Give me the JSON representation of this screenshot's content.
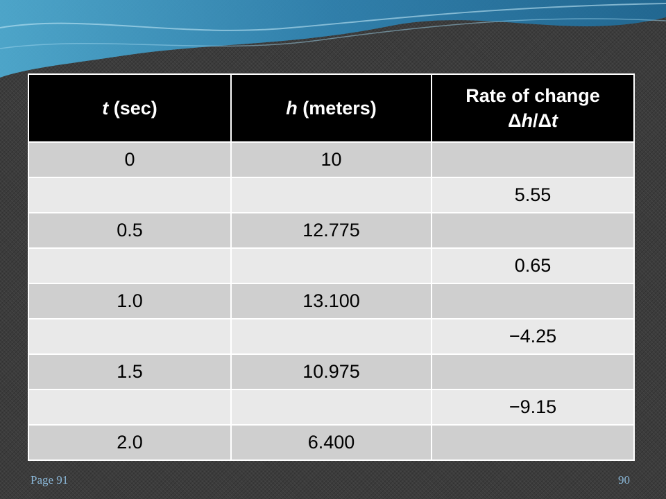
{
  "table": {
    "headers": {
      "col1": {
        "italic": "t",
        "rest": " (sec)"
      },
      "col2": {
        "italic": "h",
        "rest": " (meters)"
      },
      "col3": {
        "line1": "Rate of change",
        "delta1": "Δ",
        "var1": "h",
        "slash": "/",
        "delta2": "Δ",
        "var2": "t"
      }
    },
    "rows": [
      {
        "t": "0",
        "h": "10",
        "rate": ""
      },
      {
        "t": "",
        "h": "",
        "rate": "5.55"
      },
      {
        "t": "0.5",
        "h": "12.775",
        "rate": ""
      },
      {
        "t": "",
        "h": "",
        "rate": "0.65"
      },
      {
        "t": "1.0",
        "h": "13.100",
        "rate": ""
      },
      {
        "t": "",
        "h": "",
        "rate": "−4.25"
      },
      {
        "t": "1.5",
        "h": "10.975",
        "rate": ""
      },
      {
        "t": "",
        "h": "",
        "rate": "−9.15"
      },
      {
        "t": "2.0",
        "h": "6.400",
        "rate": ""
      }
    ]
  },
  "footer": {
    "page_ref": "Page 91",
    "slide_number": "90"
  },
  "colors": {
    "header_bg": "#000000",
    "row_dark": "#cfcfcf",
    "row_light": "#e9e9e9",
    "footer_text": "#8ab6d6"
  }
}
